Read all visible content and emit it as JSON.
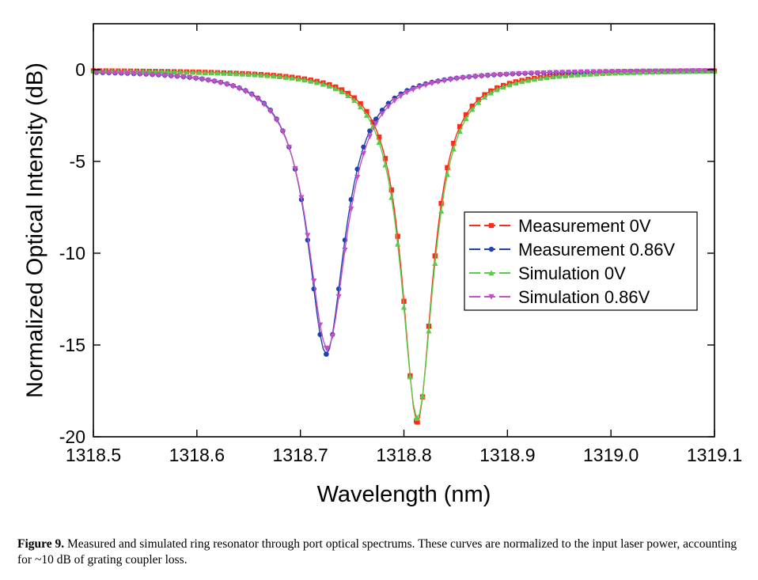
{
  "chart_data": {
    "type": "line",
    "xlabel": "Wavelength (nm)",
    "ylabel": "Normalized Optical Intensity (dB)",
    "xlim": [
      1318.5,
      1319.1
    ],
    "ylim": [
      -20,
      2.5
    ],
    "x_ticks": [
      "1318.5",
      "1318.6",
      "1318.7",
      "1318.8",
      "1318.9",
      "1319.0",
      "1319.1"
    ],
    "x_tick_values": [
      1318.5,
      1318.6,
      1318.7,
      1318.8,
      1318.9,
      1319.0,
      1319.1
    ],
    "y_ticks": [
      "0",
      "-5",
      "-10",
      "-15",
      "-20"
    ],
    "y_tick_values": [
      0,
      -5,
      -10,
      -15,
      -20
    ],
    "grid": false,
    "legend_position": "center-right",
    "series": [
      {
        "name": "Measurement 0V",
        "color": "#ff2a1a",
        "marker": "square",
        "resonance": {
          "center": 1318.813,
          "depth": 19.2,
          "hwhm": 0.018,
          "offset": 0
        }
      },
      {
        "name": "Measurement 0.86V",
        "color": "#2042b0",
        "marker": "circle",
        "resonance": {
          "center": 1318.725,
          "depth": 15.5,
          "hwhm": 0.022,
          "offset": 0
        }
      },
      {
        "name": "Simulation 0V",
        "color": "#58cc4a",
        "marker": "triangle-up",
        "resonance": {
          "center": 1318.813,
          "depth": 19.0,
          "hwhm": 0.019,
          "offset": 0
        }
      },
      {
        "name": "Simulation 0.86V",
        "color": "#c24fc4",
        "marker": "triangle-down",
        "resonance": {
          "center": 1318.726,
          "depth": 15.2,
          "hwhm": 0.023,
          "offset": 0
        }
      }
    ]
  },
  "caption": {
    "label": "Figure 9.",
    "text": "Measured and simulated ring resonator through port optical spectrums. These curves are normalized to the input laser power, accounting for ~10 dB of grating coupler loss."
  }
}
